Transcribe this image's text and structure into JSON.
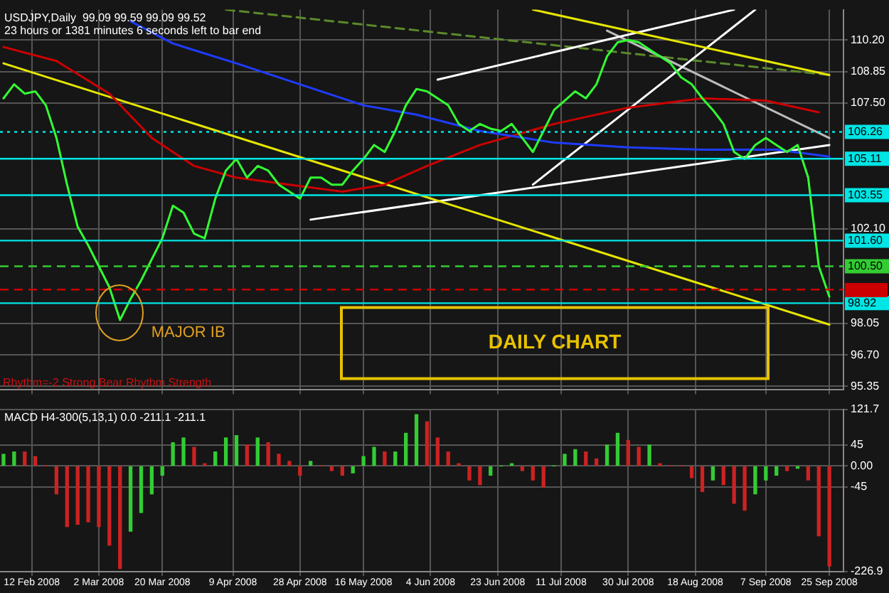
{
  "chart_data": [
    {
      "type": "line",
      "title": "USDJPY,Daily  99.09 99.59 99.09 99.52",
      "subtitle": "23 hours or 1381 minutes 6 seconds left to bar end",
      "x": [
        "2008-02-04",
        "2008-02-07",
        "2008-02-10",
        "2008-02-13",
        "2008-02-16",
        "2008-02-19",
        "2008-02-22",
        "2008-02-25",
        "2008-02-28",
        "2008-03-02",
        "2008-03-05",
        "2008-03-08",
        "2008-03-11",
        "2008-03-14",
        "2008-03-17",
        "2008-03-20",
        "2008-03-23",
        "2008-03-26",
        "2008-03-29",
        "2008-04-01",
        "2008-04-04",
        "2008-04-07",
        "2008-04-10",
        "2008-04-13",
        "2008-04-16",
        "2008-04-19",
        "2008-04-22",
        "2008-04-25",
        "2008-04-28",
        "2008-05-01",
        "2008-05-04",
        "2008-05-07",
        "2008-05-10",
        "2008-05-13",
        "2008-05-16",
        "2008-05-19",
        "2008-05-22",
        "2008-05-25",
        "2008-05-28",
        "2008-05-31",
        "2008-06-03",
        "2008-06-06",
        "2008-06-09",
        "2008-06-12",
        "2008-06-15",
        "2008-06-18",
        "2008-06-21",
        "2008-06-24",
        "2008-06-27",
        "2008-06-30",
        "2008-07-03",
        "2008-07-06",
        "2008-07-09",
        "2008-07-12",
        "2008-07-15",
        "2008-07-18",
        "2008-07-21",
        "2008-07-24",
        "2008-07-27",
        "2008-07-30",
        "2008-08-02",
        "2008-08-05",
        "2008-08-08",
        "2008-08-11",
        "2008-08-14",
        "2008-08-17",
        "2008-08-20",
        "2008-08-23",
        "2008-08-26",
        "2008-08-29",
        "2008-09-01",
        "2008-09-04",
        "2008-09-07",
        "2008-09-10",
        "2008-09-13",
        "2008-09-16",
        "2008-09-19",
        "2008-09-22",
        "2008-09-25"
      ],
      "series": [
        {
          "color": "#33ff33",
          "values": [
            107.7,
            108.3,
            107.9,
            108.0,
            107.4,
            106.0,
            104.0,
            102.2,
            101.4,
            100.5,
            99.6,
            98.2,
            99.1,
            99.9,
            100.8,
            101.7,
            103.1,
            102.8,
            101.9,
            101.7,
            103.4,
            104.6,
            105.1,
            104.3,
            104.8,
            104.6,
            104.0,
            103.7,
            103.4,
            104.3,
            104.3,
            104.0,
            104.0,
            104.6,
            105.1,
            105.7,
            105.4,
            106.3,
            107.4,
            108.1,
            108.0,
            107.7,
            107.4,
            106.6,
            106.3,
            106.6,
            106.4,
            106.3,
            106.6,
            106.0,
            105.4,
            106.3,
            107.2,
            107.6,
            108.0,
            107.7,
            108.3,
            109.5,
            110.1,
            110.2,
            110.1,
            109.8,
            109.5,
            109.2,
            108.6,
            108.3,
            107.7,
            107.2,
            106.6,
            105.4,
            105.1,
            105.7,
            106.0,
            105.7,
            105.4,
            105.7,
            104.3,
            100.5,
            99.2
          ]
        },
        {
          "color": "#1f3cff",
          "x": [
            "2008-03-11",
            "2008-03-23",
            "2008-04-10",
            "2008-04-28",
            "2008-05-16",
            "2008-05-31",
            "2008-06-18",
            "2008-07-09",
            "2008-07-30",
            "2008-08-20",
            "2008-09-10",
            "2008-09-25"
          ],
          "values": [
            111.0,
            110.05,
            109.2,
            108.3,
            107.4,
            107.0,
            106.3,
            105.8,
            105.6,
            105.5,
            105.5,
            105.2
          ]
        },
        {
          "color": "#cc0000",
          "x": [
            "2008-02-04",
            "2008-02-19",
            "2008-03-05",
            "2008-03-17",
            "2008-03-29",
            "2008-04-10",
            "2008-04-25",
            "2008-05-10",
            "2008-05-22",
            "2008-06-03",
            "2008-06-18",
            "2008-07-09",
            "2008-07-30",
            "2008-08-20",
            "2008-09-07",
            "2008-09-22"
          ],
          "values": [
            109.9,
            109.3,
            107.9,
            106.0,
            104.8,
            104.3,
            104.0,
            103.7,
            104.0,
            104.8,
            105.7,
            106.6,
            107.3,
            107.7,
            107.6,
            107.1
          ]
        },
        {
          "color": "#e6e600",
          "x": [
            "2008-02-04",
            "2008-09-25"
          ],
          "values": [
            109.2,
            98.0
          ]
        },
        {
          "color": "#e6e600",
          "x": [
            "2008-07-03",
            "2008-09-25"
          ],
          "values": [
            111.5,
            108.7
          ]
        },
        {
          "color": "#ffffff",
          "x": [
            "2008-06-06",
            "2008-08-29"
          ],
          "values": [
            108.5,
            111.5
          ]
        },
        {
          "color": "#ffffff",
          "x": [
            "2008-05-01",
            "2008-09-25"
          ],
          "values": [
            102.5,
            105.7
          ]
        },
        {
          "color": "#ffffff",
          "x": [
            "2008-07-03",
            "2008-09-04"
          ],
          "values": [
            104.0,
            111.5
          ]
        },
        {
          "color": "#bbbbbb",
          "x": [
            "2008-07-24",
            "2008-09-25"
          ],
          "values": [
            110.6,
            106.0
          ]
        },
        {
          "color": "#5a8a2a",
          "line_style": "dashed",
          "x": [
            "2008-04-07",
            "2008-09-25"
          ],
          "values": [
            111.5,
            108.7
          ]
        }
      ],
      "xlim": [
        "2008-02-03",
        "2008-09-29"
      ],
      "xticks": [
        {
          "value": "2008-02-12",
          "label": null
        },
        {
          "value": "2008-03-02",
          "label": null
        },
        {
          "value": "2008-03-20",
          "label": null
        },
        {
          "value": "2008-04-09",
          "label": null
        },
        {
          "value": "2008-04-28",
          "label": null
        },
        {
          "value": "2008-05-16",
          "label": null
        },
        {
          "value": "2008-06-04",
          "label": null
        },
        {
          "value": "2008-06-23",
          "label": null
        },
        {
          "value": "2008-07-11",
          "label": null
        },
        {
          "value": "2008-07-30",
          "label": null
        },
        {
          "value": "2008-08-18",
          "label": null
        },
        {
          "value": "2008-09-07",
          "label": null
        },
        {
          "value": "2008-09-25",
          "label": null
        }
      ],
      "ylim": [
        95.2,
        111.5
      ],
      "yticks": [
        {
          "value": 95.35,
          "label": "95.35"
        },
        {
          "value": 96.7,
          "label": "96.70"
        },
        {
          "value": 98.05,
          "label": "98.05"
        },
        {
          "value": 102.1,
          "label": "102.10"
        },
        {
          "value": 107.5,
          "label": "107.50"
        },
        {
          "value": 108.85,
          "label": "108.85"
        },
        {
          "value": 110.2,
          "label": "110.20"
        }
      ],
      "grid": true,
      "tick_labels": "y",
      "ref_lines": [
        {
          "axis": "y",
          "value": 106.26,
          "label": "106.26",
          "color": "#00e5e5",
          "line_style": "dotted"
        },
        {
          "axis": "y",
          "value": 105.11,
          "label": "105.11",
          "color": "#00e5e5"
        },
        {
          "axis": "y",
          "value": 103.55,
          "label": "103.55",
          "color": "#00e5e5"
        },
        {
          "axis": "y",
          "value": 101.6,
          "label": "101.60",
          "color": "#00e5e5"
        },
        {
          "axis": "y",
          "value": 100.5,
          "label": "100.50",
          "color": "#33cc33",
          "line_style": "dashed"
        },
        {
          "axis": "y",
          "value": 99.5,
          "label": null,
          "color": "#cc0000",
          "line_style": "dashed"
        },
        {
          "axis": "y",
          "value": 98.92,
          "label": "98.92",
          "color": "#00e5e5"
        }
      ],
      "annotations": [
        {
          "text": "MAJOR IB",
          "x": "2008-03-08",
          "y": 98.5
        },
        "DAILY CHART",
        "Rhythm=-2 Strong Bear Rhythm Strength"
      ]
    },
    {
      "type": "bar",
      "title": "MACD H4-300(5,13,1) 0.0 -211.1 -211.1",
      "x": [
        "2008-02-04",
        "2008-02-07",
        "2008-02-10",
        "2008-02-13",
        "2008-02-16",
        "2008-02-19",
        "2008-02-22",
        "2008-02-25",
        "2008-02-28",
        "2008-03-02",
        "2008-03-05",
        "2008-03-08",
        "2008-03-11",
        "2008-03-14",
        "2008-03-17",
        "2008-03-20",
        "2008-03-23",
        "2008-03-26",
        "2008-03-29",
        "2008-04-01",
        "2008-04-04",
        "2008-04-07",
        "2008-04-10",
        "2008-04-13",
        "2008-04-16",
        "2008-04-19",
        "2008-04-22",
        "2008-04-25",
        "2008-04-28",
        "2008-05-01",
        "2008-05-04",
        "2008-05-07",
        "2008-05-10",
        "2008-05-13",
        "2008-05-16",
        "2008-05-19",
        "2008-05-22",
        "2008-05-25",
        "2008-05-28",
        "2008-05-31",
        "2008-06-03",
        "2008-06-06",
        "2008-06-09",
        "2008-06-12",
        "2008-06-15",
        "2008-06-18",
        "2008-06-21",
        "2008-06-24",
        "2008-06-27",
        "2008-06-30",
        "2008-07-03",
        "2008-07-06",
        "2008-07-09",
        "2008-07-12",
        "2008-07-15",
        "2008-07-18",
        "2008-07-21",
        "2008-07-24",
        "2008-07-27",
        "2008-07-30",
        "2008-08-02",
        "2008-08-05",
        "2008-08-08",
        "2008-08-11",
        "2008-08-14",
        "2008-08-17",
        "2008-08-20",
        "2008-08-23",
        "2008-08-26",
        "2008-08-29",
        "2008-09-01",
        "2008-09-04",
        "2008-09-07",
        "2008-09-10",
        "2008-09-13",
        "2008-09-16",
        "2008-09-19",
        "2008-09-22",
        "2008-09-25"
      ],
      "values": [
        25,
        30,
        30,
        20,
        0,
        -60,
        -130,
        -125,
        -120,
        -130,
        -170,
        -220,
        -140,
        -100,
        -60,
        -20,
        50,
        60,
        40,
        5,
        30,
        60,
        65,
        45,
        60,
        50,
        25,
        10,
        -20,
        10,
        0,
        -10,
        -20,
        -15,
        20,
        40,
        30,
        30,
        70,
        110,
        95,
        60,
        30,
        5,
        -30,
        -40,
        -20,
        0,
        5,
        -10,
        -30,
        -45,
        0,
        25,
        35,
        30,
        15,
        45,
        70,
        55,
        40,
        45,
        5,
        0,
        0,
        -25,
        -55,
        -30,
        -40,
        -80,
        -95,
        -60,
        -30,
        -20,
        -10,
        -5,
        -30,
        -150,
        -215
      ],
      "colors": [
        "#33cc33",
        "#33cc33",
        "#cc2222",
        "#cc2222",
        "#cc2222",
        "#cc2222",
        "#cc2222",
        "#cc2222",
        "#cc2222",
        "#cc2222",
        "#cc2222",
        "#cc2222",
        "#33cc33",
        "#33cc33",
        "#33cc33",
        "#33cc33",
        "#33cc33",
        "#33cc33",
        "#cc2222",
        "#cc2222",
        "#33cc33",
        "#33cc33",
        "#33cc33",
        "#cc2222",
        "#33cc33",
        "#cc2222",
        "#cc2222",
        "#cc2222",
        "#cc2222",
        "#33cc33",
        "#cc2222",
        "#cc2222",
        "#cc2222",
        "#33cc33",
        "#33cc33",
        "#33cc33",
        "#cc2222",
        "#33cc33",
        "#33cc33",
        "#33cc33",
        "#cc2222",
        "#cc2222",
        "#cc2222",
        "#cc2222",
        "#cc2222",
        "#cc2222",
        "#33cc33",
        "#33cc33",
        "#33cc33",
        "#cc2222",
        "#cc2222",
        "#cc2222",
        "#33cc33",
        "#33cc33",
        "#33cc33",
        "#cc2222",
        "#cc2222",
        "#33cc33",
        "#33cc33",
        "#cc2222",
        "#cc2222",
        "#33cc33",
        "#cc2222",
        "#cc2222",
        "#cc2222",
        "#cc2222",
        "#cc2222",
        "#33cc33",
        "#cc2222",
        "#cc2222",
        "#cc2222",
        "#33cc33",
        "#33cc33",
        "#33cc33",
        "#cc2222",
        "#33cc33",
        "#cc2222",
        "#cc2222",
        "#cc2222"
      ],
      "xlim": [
        "2008-02-03",
        "2008-09-29"
      ],
      "xticks": [
        {
          "value": "2008-02-12",
          "label": "12 Feb 2008"
        },
        {
          "value": "2008-03-02",
          "label": "2 Mar 2008"
        },
        {
          "value": "2008-03-20",
          "label": "20 Mar 2008"
        },
        {
          "value": "2008-04-09",
          "label": "9 Apr 2008"
        },
        {
          "value": "2008-04-28",
          "label": "28 Apr 2008"
        },
        {
          "value": "2008-05-16",
          "label": "16 May 2008"
        },
        {
          "value": "2008-06-04",
          "label": "4 Jun 2008"
        },
        {
          "value": "2008-06-23",
          "label": "23 Jun 2008"
        },
        {
          "value": "2008-07-11",
          "label": "11 Jul 2008"
        },
        {
          "value": "2008-07-30",
          "label": "30 Jul 2008"
        },
        {
          "value": "2008-08-18",
          "label": "18 Aug 2008"
        },
        {
          "value": "2008-09-07",
          "label": "7 Sep 2008"
        },
        {
          "value": "2008-09-25",
          "label": "25 Sep 2008"
        }
      ],
      "ylim": [
        -226.9,
        121.7
      ],
      "yticks": [
        -226.9,
        -45,
        {
          "value": 0,
          "label": "0.00"
        },
        45,
        121.7
      ],
      "grid": true
    }
  ]
}
